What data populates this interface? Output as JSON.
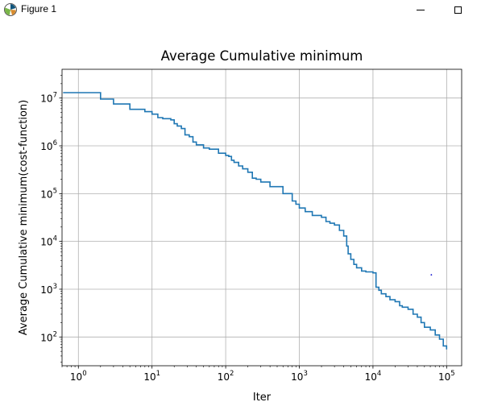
{
  "window": {
    "title": "Figure 1",
    "icon": "matplotlib-figure-icon",
    "controls": [
      "minimize-icon",
      "maximize-icon"
    ]
  },
  "chart_data": {
    "type": "line",
    "title": "Average Cumulative minimum",
    "xlabel": "Iter",
    "ylabel": "Average Cumulative minimum(cost-function)",
    "xscale": "log",
    "yscale": "log",
    "xlim": [
      0.6,
      160000
    ],
    "ylim": [
      25,
      40000000
    ],
    "grid": true,
    "line_color": "#1f77b4",
    "xticks": [
      {
        "value": 1,
        "base": "10",
        "exp": "0"
      },
      {
        "value": 10,
        "base": "10",
        "exp": "1"
      },
      {
        "value": 100,
        "base": "10",
        "exp": "2"
      },
      {
        "value": 1000,
        "base": "10",
        "exp": "3"
      },
      {
        "value": 10000,
        "base": "10",
        "exp": "4"
      },
      {
        "value": 100000,
        "base": "10",
        "exp": "5"
      }
    ],
    "yticks": [
      {
        "value": 100,
        "base": "10",
        "exp": "2"
      },
      {
        "value": 1000,
        "base": "10",
        "exp": "3"
      },
      {
        "value": 10000,
        "base": "10",
        "exp": "4"
      },
      {
        "value": 100000,
        "base": "10",
        "exp": "5"
      },
      {
        "value": 1000000,
        "base": "10",
        "exp": "6"
      },
      {
        "value": 10000000,
        "base": "10",
        "exp": "7"
      }
    ],
    "series": [
      {
        "x": [
          0.62,
          1,
          2,
          3,
          5,
          8,
          10,
          12,
          14,
          18,
          20,
          22,
          25,
          28,
          32,
          36,
          40,
          50,
          60,
          80,
          100,
          110,
          120,
          130,
          150,
          170,
          200,
          230,
          260,
          300,
          400,
          500,
          600,
          800,
          900,
          1000,
          1200,
          1500,
          2000,
          2300,
          2600,
          3000,
          3500,
          4000,
          4400,
          4600,
          5000,
          5500,
          6000,
          7000,
          8000,
          10000,
          11000,
          12000,
          13000,
          15000,
          17000,
          20000,
          23000,
          25000,
          30000,
          35000,
          40000,
          45000,
          50000,
          60000,
          70000,
          80000,
          90000,
          100000
        ],
        "y": [
          13000000,
          13000000,
          9500000,
          7500000,
          5800000,
          5200000,
          4600000,
          3900000,
          3700000,
          3500000,
          2900000,
          2600000,
          2300000,
          1700000,
          1550000,
          1200000,
          1050000,
          900000,
          850000,
          700000,
          630000,
          600000,
          500000,
          450000,
          380000,
          330000,
          280000,
          210000,
          200000,
          175000,
          140000,
          140000,
          100000,
          70000,
          60000,
          50000,
          42000,
          35000,
          32000,
          26000,
          24000,
          22000,
          17000,
          13000,
          8000,
          5500,
          4200,
          3300,
          2800,
          2400,
          2300,
          2200,
          1100,
          950,
          800,
          700,
          600,
          550,
          450,
          420,
          380,
          300,
          260,
          200,
          160,
          140,
          110,
          90,
          65,
          55
        ]
      }
    ],
    "annotations": [
      {
        "type": "marker",
        "x": 62000,
        "y": 2000,
        "color": "#0000cc"
      }
    ]
  }
}
